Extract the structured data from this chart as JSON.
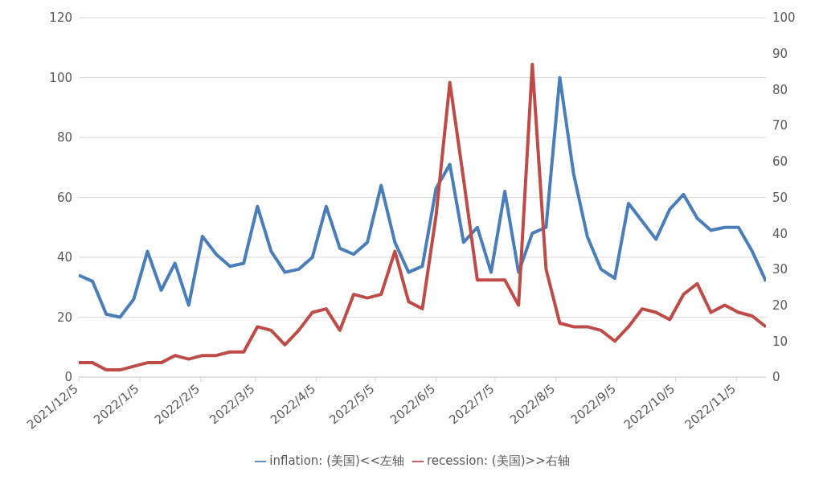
{
  "chart_data": {
    "type": "line",
    "x": [
      "2021-12-05",
      "2021-12-12",
      "2021-12-19",
      "2021-12-26",
      "2022-01-02",
      "2022-01-09",
      "2022-01-16",
      "2022-01-23",
      "2022-01-30",
      "2022-02-06",
      "2022-02-13",
      "2022-02-20",
      "2022-02-27",
      "2022-03-06",
      "2022-03-13",
      "2022-03-20",
      "2022-03-27",
      "2022-04-03",
      "2022-04-10",
      "2022-04-17",
      "2022-04-24",
      "2022-05-01",
      "2022-05-08",
      "2022-05-15",
      "2022-05-22",
      "2022-05-29",
      "2022-06-05",
      "2022-06-12",
      "2022-06-19",
      "2022-06-26",
      "2022-07-03",
      "2022-07-10",
      "2022-07-17",
      "2022-07-24",
      "2022-07-31",
      "2022-08-07",
      "2022-08-14",
      "2022-08-21",
      "2022-08-28",
      "2022-09-04",
      "2022-09-11",
      "2022-09-18",
      "2022-09-25",
      "2022-10-02",
      "2022-10-09",
      "2022-10-16",
      "2022-10-23",
      "2022-10-30",
      "2022-11-06",
      "2022-11-13",
      "2022-11-20"
    ],
    "series": [
      {
        "name": "inflation: (美国)<<左轴",
        "color": "#4a7ebb",
        "values": [
          34,
          32,
          21,
          20,
          26,
          42,
          29,
          38,
          24,
          47,
          41,
          37,
          38,
          57,
          42,
          35,
          36,
          40,
          57,
          43,
          41,
          45,
          64,
          45,
          35,
          37,
          63,
          71,
          45,
          50,
          35,
          62,
          35,
          48,
          50,
          100,
          68,
          47,
          36,
          33,
          58,
          52,
          46,
          56,
          61,
          53,
          49,
          50,
          50,
          42,
          32
        ]
      },
      {
        "name": "recession: (美国)>>右轴",
        "color": "#be4b48",
        "axis": "y2",
        "values": [
          4,
          4,
          2,
          2,
          3,
          4,
          4,
          6,
          5,
          6,
          6,
          7,
          7,
          14,
          13,
          9,
          13,
          18,
          19,
          13,
          23,
          22,
          23,
          35,
          21,
          19,
          45,
          82,
          55,
          27,
          27,
          27,
          20,
          87,
          30,
          15,
          14,
          14,
          13,
          10,
          14,
          19,
          18,
          16,
          23,
          26,
          18,
          20,
          18,
          17,
          14
        ]
      }
    ],
    "xlim": [
      "2021-12-05",
      "2022-11-20"
    ],
    "xticks": [
      {
        "value": "2021-12-05",
        "label": "2021/12/5"
      },
      {
        "value": "2022-01-05",
        "label": "2022/1/5"
      },
      {
        "value": "2022-02-05",
        "label": "2022/2/5"
      },
      {
        "value": "2022-03-05",
        "label": "2022/3/5"
      },
      {
        "value": "2022-04-05",
        "label": "2022/4/5"
      },
      {
        "value": "2022-05-05",
        "label": "2022/5/5"
      },
      {
        "value": "2022-06-05",
        "label": "2022/6/5"
      },
      {
        "value": "2022-07-05",
        "label": "2022/7/5"
      },
      {
        "value": "2022-08-05",
        "label": "2022/8/5"
      },
      {
        "value": "2022-09-05",
        "label": "2022/9/5"
      },
      {
        "value": "2022-10-05",
        "label": "2022/10/5"
      },
      {
        "value": "2022-11-05",
        "label": "2022/11/5"
      }
    ],
    "ylim": [
      0,
      120
    ],
    "yticks": [
      0,
      20,
      40,
      60,
      80,
      100,
      120
    ],
    "y2lim": [
      0,
      100
    ],
    "y2ticks": [
      0,
      10,
      20,
      30,
      40,
      50,
      60,
      70,
      80,
      90,
      100
    ],
    "grid": "y",
    "legend": "bottom",
    "marker": "none",
    "line_style": "solid"
  }
}
